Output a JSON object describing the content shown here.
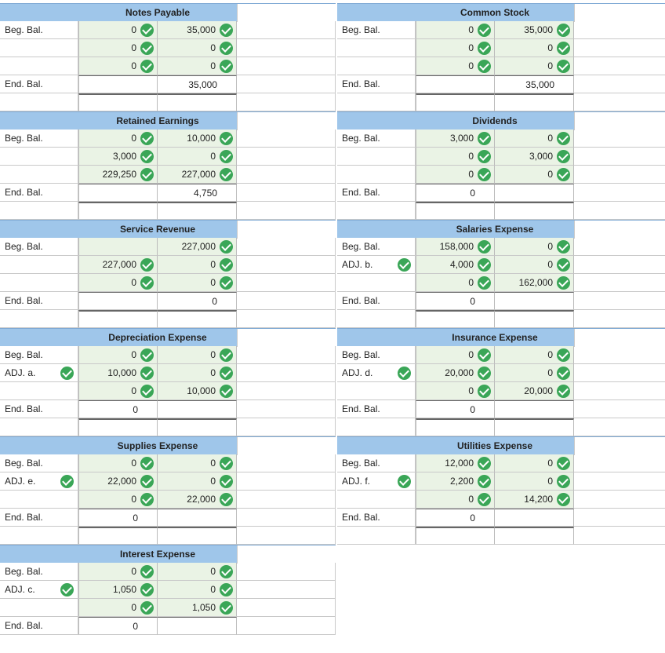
{
  "labels": {
    "beg": "Beg. Bal.",
    "end": "End. Bal."
  },
  "accounts": {
    "notes_payable": {
      "title": "Notes Payable",
      "debits": [
        "0",
        "0",
        "0"
      ],
      "credits": [
        "35,000",
        "0",
        "0"
      ],
      "end_debit": "",
      "end_credit": "35,000"
    },
    "common_stock": {
      "title": "Common Stock",
      "debits": [
        "0",
        "0",
        "0"
      ],
      "credits": [
        "35,000",
        "0",
        "0"
      ],
      "end_debit": "",
      "end_credit": "35,000"
    },
    "retained_earnings": {
      "title": "Retained Earnings",
      "debits": [
        "0",
        "3,000",
        "229,250"
      ],
      "credits": [
        "10,000",
        "0",
        "227,000"
      ],
      "end_debit": "",
      "end_credit": "4,750"
    },
    "dividends": {
      "title": "Dividends",
      "debits": [
        "3,000",
        "0",
        "0"
      ],
      "credits": [
        "0",
        "3,000",
        "0"
      ],
      "end_debit": "0",
      "end_credit": ""
    },
    "service_revenue": {
      "title": "Service Revenue",
      "debits": [
        "",
        "227,000",
        "0"
      ],
      "credits": [
        "227,000",
        "0",
        "0"
      ],
      "end_debit": "",
      "end_credit": "0"
    },
    "salaries_expense": {
      "title": "Salaries Expense",
      "adj": "ADJ. b.",
      "debits": [
        "158,000",
        "4,000",
        "0"
      ],
      "credits": [
        "0",
        "0",
        "162,000"
      ],
      "end_debit": "0",
      "end_credit": ""
    },
    "depreciation_expense": {
      "title": "Depreciation Expense",
      "adj": "ADJ. a.",
      "debits": [
        "0",
        "10,000",
        "0"
      ],
      "credits": [
        "0",
        "0",
        "10,000"
      ],
      "end_debit": "0",
      "end_credit": ""
    },
    "insurance_expense": {
      "title": "Insurance Expense",
      "adj": "ADJ. d.",
      "debits": [
        "0",
        "20,000",
        "0"
      ],
      "credits": [
        "0",
        "0",
        "20,000"
      ],
      "end_debit": "0",
      "end_credit": ""
    },
    "supplies_expense": {
      "title": "Supplies Expense",
      "adj": "ADJ. e.",
      "debits": [
        "0",
        "22,000",
        "0"
      ],
      "credits": [
        "0",
        "0",
        "22,000"
      ],
      "end_debit": "0",
      "end_credit": ""
    },
    "utilities_expense": {
      "title": "Utilities Expense",
      "adj": "ADJ. f.",
      "debits": [
        "12,000",
        "2,200",
        "0"
      ],
      "credits": [
        "0",
        "0",
        "14,200"
      ],
      "end_debit": "0",
      "end_credit": ""
    },
    "interest_expense": {
      "title": "Interest Expense",
      "adj": "ADJ. c.",
      "debits": [
        "0",
        "1,050",
        "0"
      ],
      "credits": [
        "0",
        "0",
        "1,050"
      ],
      "end_debit": "0",
      "end_credit": ""
    }
  },
  "colors": {
    "header": "#9fc6ea",
    "input_fill": "#eaf3e5",
    "check": "#3aa657"
  }
}
